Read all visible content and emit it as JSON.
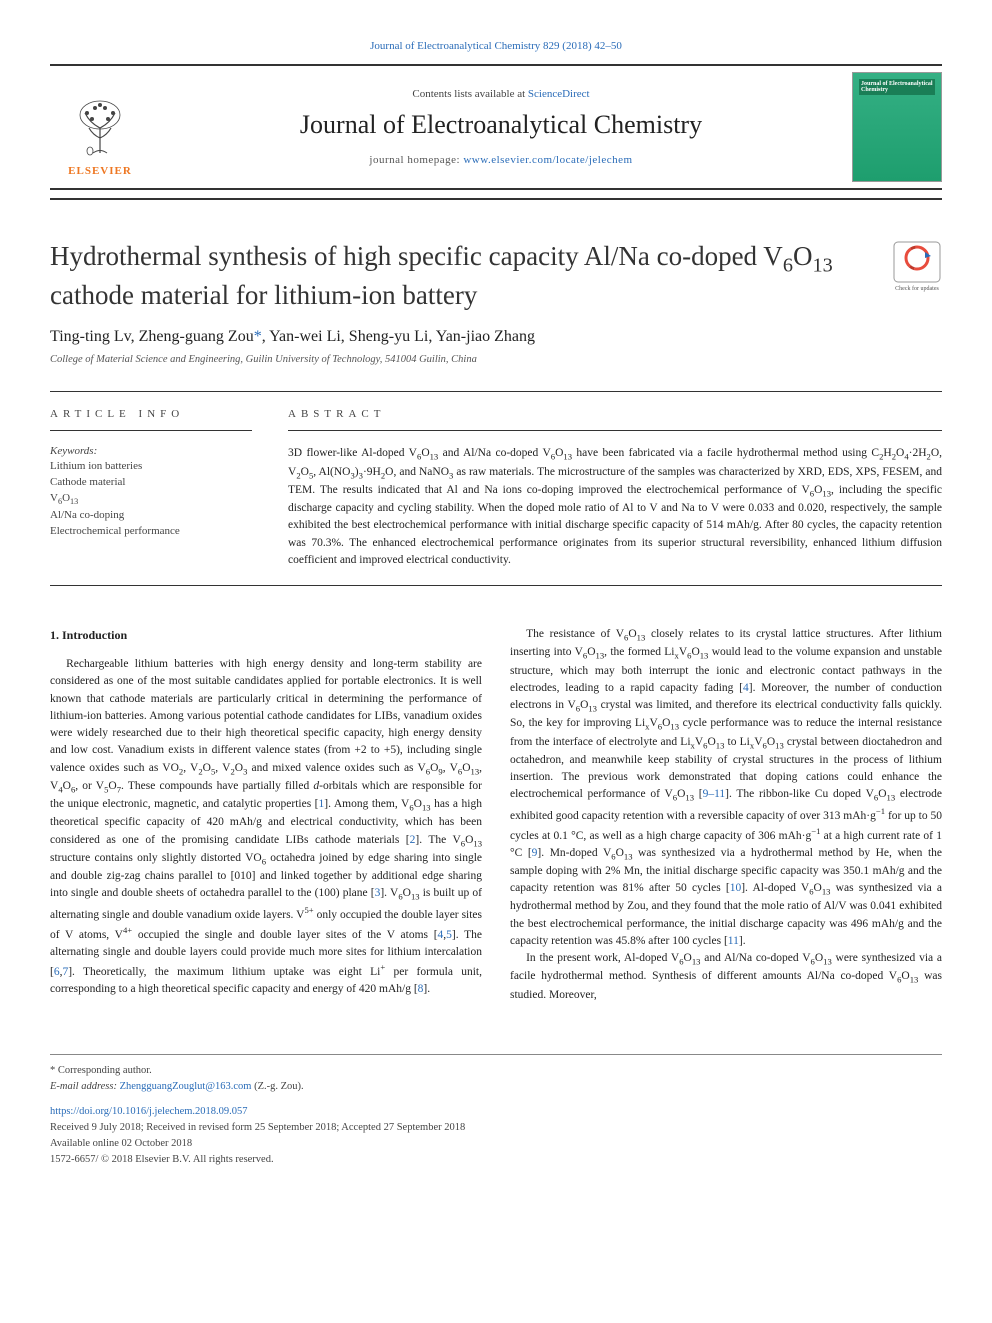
{
  "citation": "Journal of Electroanalytical Chemistry 829 (2018) 42–50",
  "header": {
    "contents_prefix": "Contents lists available at ",
    "contents_link": "ScienceDirect",
    "journal_name": "Journal of Electroanalytical Chemistry",
    "homepage_prefix": "journal homepage: ",
    "homepage_url": "www.elsevier.com/locate/jelechem",
    "publisher_logo_text": "ELSEVIER",
    "cover_text": "Journal of Electroanalytical Chemistry"
  },
  "article": {
    "title_html": "Hydrothermal synthesis of high specific capacity Al/Na co-doped V<sub>6</sub>O<sub>13</sub> cathode material for lithium-ion battery",
    "check_updates_label": "Check for updates",
    "authors_html": "Ting-ting Lv, Zheng-guang Zou<span class='corr'>*</span>, Yan-wei Li, Sheng-yu Li, Yan-jiao Zhang",
    "affiliation": "College of Material Science and Engineering, Guilin University of Technology, 541004 Guilin, China"
  },
  "artinfo": {
    "heading": "ARTICLE INFO",
    "keywords_heading": "Keywords:",
    "keywords": [
      "Lithium ion batteries",
      "Cathode material",
      "V<sub>6</sub>O<sub>13</sub>",
      "Al/Na co-doping",
      "Electrochemical performance"
    ]
  },
  "abstract": {
    "heading": "ABSTRACT",
    "text_html": "3D flower-like Al-doped V<sub>6</sub>O<sub>13</sub> and Al/Na co-doped V<sub>6</sub>O<sub>13</sub> have been fabricated via a facile hydrothermal method using C<sub>2</sub>H<sub>2</sub>O<sub>4</sub>·2H<sub>2</sub>O, V<sub>2</sub>O<sub>5</sub>, Al(NO<sub>3</sub>)<sub>3</sub>·9H<sub>2</sub>O, and NaNO<sub>3</sub> as raw materials. The microstructure of the samples was characterized by XRD, EDS, XPS, FESEM, and TEM. The results indicated that Al and Na ions co-doping improved the electrochemical performance of V<sub>6</sub>O<sub>13</sub>, including the specific discharge capacity and cycling stability. When the doped mole ratio of Al to V and Na to V were 0.033 and 0.020, respectively, the sample exhibited the best electrochemical performance with initial discharge specific capacity of 514 mAh/g. After 80 cycles, the capacity retention was 70.3%. The enhanced electrochemical performance originates from its superior structural reversibility, enhanced lithium diffusion coefficient and improved electrical conductivity."
  },
  "body": {
    "section_heading": "1. Introduction",
    "col1_html": "Rechargeable lithium batteries with high energy density and long-term stability are considered as one of the most suitable candidates applied for portable electronics. It is well known that cathode materials are particularly critical in determining the performance of lithium-ion batteries. Among various potential cathode candidates for LIBs, vanadium oxides were widely researched due to their high theoretical specific capacity, high energy density and low cost. Vanadium exists in different valence states (from +2 to +5), including single valence oxides such as VO<sub>2</sub>, V<sub>2</sub>O<sub>5</sub>, V<sub>2</sub>O<sub>3</sub> and mixed valence oxides such as V<sub>6</sub>O<sub>9</sub>, V<sub>6</sub>O<sub>13</sub>, V<sub>4</sub>O<sub>6</sub>, or V<sub>5</sub>O<sub>7</sub>. These compounds have partially filled <i>d</i>-orbitals which are responsible for the unique electronic, magnetic, and catalytic properties [<span class='ref'>1</span>]. Among them, V<sub>6</sub>O<sub>13</sub> has a high theoretical specific capacity of 420 mAh/g and electrical conductivity, which has been considered as one of the promising candidate LIBs cathode materials [<span class='ref'>2</span>]. The V<sub>6</sub>O<sub>13</sub> structure contains only slightly distorted VO<sub>6</sub> octahedra joined by edge sharing into single and double zig-zag chains parallel to [010] and linked together by additional edge sharing into single and double sheets of octahedra parallel to the (100) plane [<span class='ref'>3</span>]. V<sub>6</sub>O<sub>13</sub> is built up of alternating single and double vanadium oxide layers. V<sup>5+</sup> only occupied the double layer sites of V atoms, V<sup>4+</sup> occupied the single and double layer sites of the V atoms [<span class='ref'>4</span>,<span class='ref'>5</span>]. The alternating single and double layers could provide much more sites for lithium intercalation [<span class='ref'>6</span>,<span class='ref'>7</span>]. Theoretically, the maximum lithium uptake was eight Li<sup>+</sup> per formula unit, corresponding to a high theoretical specific capacity and energy of 420 mAh/g [<span class='ref'>8</span>].",
    "col2_p1_html": "The resistance of V<sub>6</sub>O<sub>13</sub> closely relates to its crystal lattice structures. After lithium inserting into V<sub>6</sub>O<sub>13</sub>, the formed Li<sub>x</sub>V<sub>6</sub>O<sub>13</sub> would lead to the volume expansion and unstable structure, which may both interrupt the ionic and electronic contact pathways in the electrodes, leading to a rapid capacity fading [<span class='ref'>4</span>]. Moreover, the number of conduction electrons in V<sub>6</sub>O<sub>13</sub> crystal was limited, and therefore its electrical conductivity falls quickly. So, the key for improving Li<sub>x</sub>V<sub>6</sub>O<sub>13</sub> cycle performance was to reduce the internal resistance from the interface of electrolyte and Li<sub>x</sub>V<sub>6</sub>O<sub>13</sub> to Li<sub>x</sub>V<sub>6</sub>O<sub>13</sub> crystal between dioctahedron and octahedron, and meanwhile keep stability of crystal structures in the process of lithium insertion. The previous work demonstrated that doping cations could enhance the electrochemical performance of V<sub>6</sub>O<sub>13</sub> [<span class='ref'>9–11</span>]. The ribbon-like Cu doped V<sub>6</sub>O<sub>13</sub> electrode exhibited good capacity retention with a reversible capacity of over 313 mAh·g<sup>−1</sup> for up to 50 cycles at 0.1 °C, as well as a high charge capacity of 306 mAh·g<sup>−1</sup> at a high current rate of 1 °C [<span class='ref'>9</span>]. Mn-doped V<sub>6</sub>O<sub>13</sub> was synthesized via a hydrothermal method by He, when the sample doping with 2% Mn, the initial discharge specific capacity was 350.1 mAh/g and the capacity retention was 81% after 50 cycles [<span class='ref'>10</span>]. Al-doped V<sub>6</sub>O<sub>13</sub> was synthesized via a hydrothermal method by Zou, and they found that the mole ratio of Al/V was 0.041 exhibited the best electrochemical performance, the initial discharge capacity was 496 mAh/g and the capacity retention was 45.8% after 100 cycles [<span class='ref'>11</span>].",
    "col2_p2_html": "In the present work, Al-doped V<sub>6</sub>O<sub>13</sub> and Al/Na co-doped V<sub>6</sub>O<sub>13</sub> were synthesized via a facile hydrothermal method. Synthesis of different amounts Al/Na co-doped V<sub>6</sub>O<sub>13</sub> was studied. Moreover,"
  },
  "footer": {
    "corr_label": "* Corresponding author.",
    "email_label": "E-mail address: ",
    "email": "ZhengguangZouglut@163.com",
    "email_suffix": " (Z.-g. Zou).",
    "doi": "https://doi.org/10.1016/j.jelechem.2018.09.057",
    "received": "Received 9 July 2018; Received in revised form 25 September 2018; Accepted 27 September 2018",
    "available": "Available online 02 October 2018",
    "copyright": "1572-6657/ © 2018 Elsevier B.V. All rights reserved."
  },
  "colors": {
    "link": "#2a6cb8",
    "publisher_orange": "#ee7722",
    "cover_green": "#34b084",
    "text": "#222222",
    "rule": "#333333"
  }
}
